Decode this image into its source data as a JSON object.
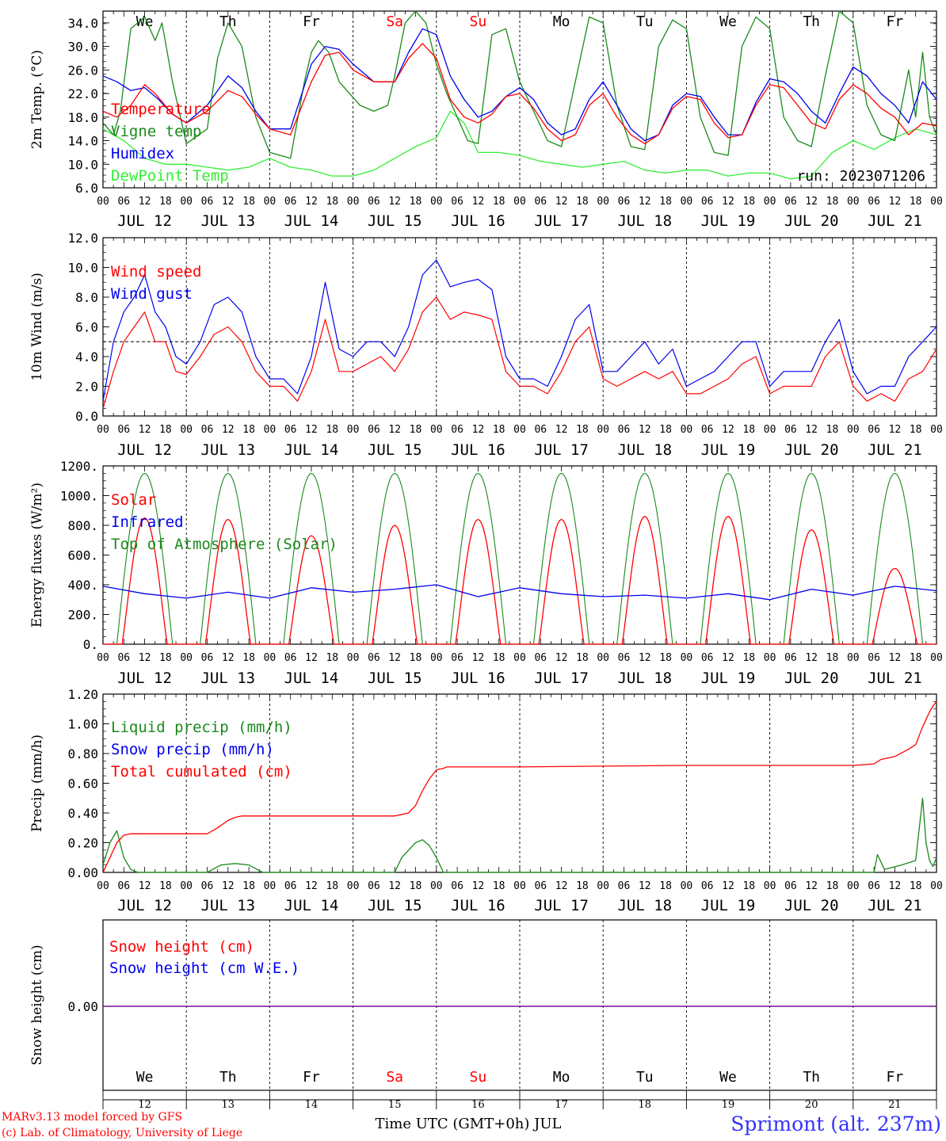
{
  "colors": {
    "red": "#ff0000",
    "green": "#1a8a1a",
    "light_green": "#33ee33",
    "blue": "#0000ee",
    "purple": "#7a0a9a",
    "black": "#000000",
    "weekend": "#ff0000",
    "location": "#3333ff"
  },
  "x_axis": {
    "hour_ticks": [
      "00",
      "06",
      "12",
      "18"
    ],
    "end_tick": "00",
    "dates": [
      "JUL 12",
      "JUL 13",
      "JUL 14",
      "JUL 15",
      "JUL 16",
      "JUL 17",
      "JUL 18",
      "JUL 19",
      "JUL 20",
      "JUL 21"
    ],
    "days": [
      "We",
      "Th",
      "Fr",
      "Sa",
      "Su",
      "Mo",
      "Tu",
      "We",
      "Th",
      "Fr"
    ],
    "weekend_flags": [
      false,
      false,
      false,
      true,
      true,
      false,
      false,
      false,
      false,
      false
    ],
    "day_numbers": [
      "12",
      "13",
      "14",
      "15",
      "16",
      "17",
      "18",
      "19",
      "20",
      "21"
    ]
  },
  "footer": {
    "xlabel": "Time UTC (GMT+0h) JUL",
    "model": "MARv3.13 model forced by GFS",
    "credit": "(c) Lab. of Climatology, University of Liege",
    "location": "Sprimont (alt. 237m)"
  },
  "chart_data": [
    {
      "id": "temp",
      "type": "line",
      "ylabel": "2m Temp. (°C)",
      "ylim": [
        6,
        36
      ],
      "yticks": [
        "6.0",
        "10.0",
        "14.0",
        "18.0",
        "22.0",
        "26.0",
        "30.0",
        "34.0"
      ],
      "annotation": "run: 2023071206",
      "series": [
        {
          "name": "Temperature",
          "color_key": "red",
          "hours": [
            0,
            4,
            8,
            12,
            15,
            20,
            24,
            30,
            36,
            40,
            44,
            48,
            54,
            60,
            64,
            68,
            72,
            78,
            84,
            88,
            92,
            96,
            100,
            104,
            108,
            112,
            116,
            120,
            124,
            128,
            132,
            136,
            140,
            144,
            148,
            152,
            156,
            160,
            164,
            168,
            172,
            176,
            180,
            184,
            188,
            192,
            196,
            200,
            204,
            208,
            212,
            216,
            220,
            224,
            228,
            232,
            236,
            240
          ],
          "values": [
            19,
            18,
            20,
            23.5,
            22,
            18.5,
            17,
            19,
            22.5,
            21.5,
            18.5,
            16,
            15,
            24,
            28.5,
            29,
            26,
            24,
            24,
            28,
            30.5,
            28,
            21,
            18,
            17,
            18.5,
            21.5,
            22,
            19.5,
            16,
            14,
            15,
            20,
            22,
            18,
            15,
            13.5,
            15,
            19.5,
            21.5,
            21,
            17,
            14.5,
            15,
            20,
            23.5,
            23,
            20,
            17,
            16,
            21,
            23.5,
            22,
            19.5,
            18,
            15,
            17,
            16.5
          ]
        },
        {
          "name": "Vigne temp",
          "color_key": "green",
          "hours": [
            0,
            3,
            5,
            8,
            12,
            15,
            17,
            20,
            24,
            30,
            33,
            36,
            40,
            44,
            48,
            54,
            58,
            60,
            62,
            65,
            68,
            71,
            74,
            78,
            82,
            84,
            87,
            90,
            93,
            96,
            99,
            102,
            105,
            108,
            112,
            116,
            120,
            124,
            128,
            132,
            136,
            140,
            144,
            148,
            152,
            156,
            160,
            164,
            168,
            172,
            176,
            180,
            184,
            188,
            192,
            196,
            200,
            204,
            208,
            212,
            216,
            220,
            224,
            228,
            232,
            234,
            236,
            238,
            240
          ],
          "values": [
            17,
            15,
            19,
            33,
            35,
            31,
            34,
            24,
            13.5,
            16,
            28,
            34,
            30,
            18,
            12,
            11,
            24,
            29,
            31,
            29,
            24,
            22,
            20,
            19,
            20,
            25,
            34,
            36,
            34,
            27,
            22,
            18,
            14,
            13.5,
            32,
            33,
            24,
            19,
            14,
            13,
            24,
            35,
            34,
            20,
            13,
            12.5,
            30,
            34.5,
            33,
            18,
            12,
            11.5,
            30,
            35,
            33,
            18,
            14,
            13,
            25,
            36,
            34,
            20,
            15,
            14,
            26,
            18,
            29,
            18,
            15
          ]
        },
        {
          "name": "Humidex",
          "color_key": "blue",
          "hours": [
            0,
            4,
            8,
            12,
            16,
            20,
            24,
            30,
            36,
            40,
            44,
            48,
            54,
            60,
            64,
            68,
            72,
            78,
            84,
            88,
            92,
            96,
            100,
            104,
            108,
            112,
            116,
            120,
            124,
            128,
            132,
            136,
            140,
            144,
            148,
            152,
            156,
            160,
            164,
            168,
            172,
            176,
            180,
            184,
            188,
            192,
            196,
            200,
            204,
            208,
            212,
            216,
            220,
            224,
            228,
            232,
            236,
            240
          ],
          "values": [
            25,
            24,
            22.5,
            23,
            21,
            18.5,
            17,
            20,
            25,
            23,
            19,
            16,
            16,
            27,
            30,
            29.5,
            27,
            24,
            24,
            29,
            33,
            32,
            25,
            21,
            18,
            19,
            21.5,
            23,
            21,
            17,
            15,
            16,
            21,
            24,
            20,
            16,
            14,
            15,
            20,
            22,
            21.5,
            18,
            15,
            15,
            20.5,
            24.5,
            24,
            22,
            19,
            17,
            22,
            26.5,
            25,
            22,
            20,
            17,
            24,
            21
          ]
        },
        {
          "name": "DewPoint Temp",
          "color_key": "light_green",
          "hours": [
            0,
            6,
            12,
            18,
            24,
            30,
            36,
            42,
            48,
            54,
            60,
            66,
            72,
            78,
            84,
            90,
            96,
            100,
            104,
            108,
            114,
            120,
            126,
            132,
            138,
            144,
            150,
            156,
            162,
            168,
            174,
            180,
            186,
            192,
            198,
            204,
            210,
            216,
            222,
            228,
            234,
            240
          ],
          "values": [
            16,
            14,
            11,
            10,
            10,
            9.5,
            9,
            9.5,
            11,
            9.5,
            9,
            8,
            8,
            9,
            11,
            13,
            14.5,
            19,
            17,
            12,
            12,
            11.5,
            10.5,
            10,
            9.5,
            10,
            10.5,
            9,
            8.5,
            9,
            9,
            8,
            8.5,
            8.5,
            7.5,
            8,
            12,
            14,
            12.5,
            14.5,
            16,
            15
          ]
        }
      ]
    },
    {
      "id": "wind",
      "type": "line",
      "ylabel": "10m Wind (m/s)",
      "ylim": [
        0,
        12
      ],
      "yticks": [
        "0.0",
        "2.0",
        "4.0",
        "6.0",
        "8.0",
        "10.0",
        "12.0"
      ],
      "reference_line": 5,
      "series": [
        {
          "name": "Wind speed",
          "color_key": "red",
          "hours": [
            0,
            3,
            6,
            9,
            12,
            15,
            18,
            21,
            24,
            28,
            32,
            36,
            40,
            44,
            48,
            52,
            56,
            60,
            64,
            68,
            72,
            76,
            80,
            84,
            88,
            92,
            96,
            100,
            104,
            108,
            112,
            116,
            120,
            124,
            128,
            132,
            136,
            140,
            144,
            148,
            152,
            156,
            160,
            164,
            168,
            172,
            176,
            180,
            184,
            188,
            192,
            196,
            200,
            204,
            208,
            212,
            216,
            220,
            224,
            228,
            232,
            236,
            240
          ],
          "values": [
            0.5,
            3,
            5,
            6,
            7,
            5,
            5,
            3,
            2.8,
            4,
            5.5,
            6,
            5,
            3,
            2,
            2,
            1,
            3,
            6.5,
            3,
            3,
            3.5,
            4,
            3,
            4.5,
            7,
            8,
            6.5,
            7,
            6.8,
            6.5,
            3,
            2,
            2,
            1.5,
            3,
            5,
            6,
            2.5,
            2,
            2.5,
            3,
            2.5,
            3,
            1.5,
            1.5,
            2,
            2.5,
            3.5,
            4,
            1.5,
            2,
            2,
            2,
            4,
            5,
            2,
            1,
            1.5,
            1,
            2.5,
            3,
            4.5
          ]
        },
        {
          "name": "Wind gust",
          "color_key": "blue",
          "hours": [
            0,
            3,
            6,
            9,
            12,
            15,
            18,
            21,
            24,
            28,
            32,
            36,
            40,
            44,
            48,
            52,
            56,
            60,
            64,
            68,
            72,
            76,
            80,
            84,
            88,
            92,
            96,
            100,
            104,
            108,
            112,
            116,
            120,
            124,
            128,
            132,
            136,
            140,
            144,
            148,
            152,
            156,
            160,
            164,
            168,
            172,
            176,
            180,
            184,
            188,
            192,
            196,
            200,
            204,
            208,
            212,
            216,
            220,
            224,
            228,
            232,
            236,
            240
          ],
          "values": [
            1,
            5,
            7,
            8,
            9.5,
            7,
            6,
            4,
            3.5,
            5,
            7.5,
            8,
            7,
            4,
            2.5,
            2.5,
            1.5,
            4,
            9,
            4.5,
            4,
            5,
            5,
            4,
            6,
            9.5,
            10.5,
            8.7,
            9,
            9.2,
            8.5,
            4,
            2.5,
            2.5,
            2,
            4,
            6.5,
            7.5,
            3,
            3,
            4,
            5,
            3.5,
            4.5,
            2,
            2.5,
            3,
            4,
            5,
            5,
            2,
            3,
            3,
            3,
            5,
            6.5,
            3,
            1.5,
            2,
            2,
            4,
            5,
            6
          ]
        }
      ]
    },
    {
      "id": "energy",
      "type": "line",
      "ylabel": "Energy fluxes (W/m²)",
      "ylim": [
        0,
        1200
      ],
      "yticks": [
        "0.",
        "200.",
        "400.",
        "600.",
        "800.",
        "1000.",
        "1200."
      ],
      "series": [
        {
          "name": "Solar",
          "color_key": "red",
          "day_peaks": [
            850,
            840,
            730,
            800,
            840,
            840,
            860,
            860,
            770,
            510
          ]
        },
        {
          "name": "Infrared",
          "color_key": "blue",
          "hours": [
            0,
            12,
            24,
            36,
            48,
            60,
            72,
            84,
            96,
            108,
            120,
            132,
            144,
            156,
            168,
            180,
            192,
            204,
            216,
            228,
            240
          ],
          "values": [
            390,
            340,
            310,
            350,
            310,
            380,
            350,
            370,
            400,
            320,
            380,
            340,
            320,
            330,
            310,
            340,
            300,
            370,
            330,
            390,
            360
          ]
        },
        {
          "name": "Top of Atmosphere (Solar)",
          "color_key": "green",
          "peak": 1150,
          "sunrise": 4,
          "sunset": 20
        }
      ]
    },
    {
      "id": "precip",
      "type": "line",
      "ylabel": "Precip (mm/h)",
      "ylim": [
        0,
        1.2
      ],
      "yticks": [
        "0.00",
        "0.20",
        "0.40",
        "0.60",
        "0.80",
        "1.00",
        "1.20"
      ],
      "series": [
        {
          "name": "Liquid precip (mm/h)",
          "color_key": "green",
          "hours": [
            0,
            2,
            4,
            6,
            8,
            10,
            30,
            34,
            38,
            42,
            46,
            84,
            86,
            88,
            90,
            92,
            94,
            96,
            98,
            200,
            222,
            223,
            225,
            230,
            234,
            236,
            237,
            238,
            239,
            240
          ],
          "values": [
            0.05,
            0.2,
            0.28,
            0.1,
            0.02,
            0,
            0,
            0.05,
            0.06,
            0.05,
            0,
            0,
            0.1,
            0.15,
            0.2,
            0.22,
            0.18,
            0.1,
            0,
            0,
            0,
            0.12,
            0.02,
            0.05,
            0.08,
            0.5,
            0.2,
            0.08,
            0.04,
            0.1
          ]
        },
        {
          "name": "Snow precip (mm/h)",
          "color_key": "blue",
          "hours": [],
          "values": []
        },
        {
          "name": "Total cumulated (cm)",
          "color_key": "red",
          "hours": [
            0,
            2,
            4,
            6,
            8,
            30,
            33,
            36,
            38,
            40,
            84,
            88,
            90,
            92,
            94,
            96,
            98,
            99,
            120,
            144,
            168,
            192,
            216,
            222,
            224,
            228,
            232,
            234,
            236,
            238,
            239,
            240
          ],
          "values": [
            0,
            0.1,
            0.2,
            0.25,
            0.26,
            0.26,
            0.3,
            0.35,
            0.37,
            0.38,
            0.38,
            0.4,
            0.45,
            0.55,
            0.63,
            0.69,
            0.7,
            0.71,
            0.71,
            0.715,
            0.72,
            0.72,
            0.72,
            0.73,
            0.76,
            0.78,
            0.83,
            0.86,
            0.98,
            1.08,
            1.12,
            1.15
          ]
        }
      ]
    },
    {
      "id": "snow",
      "type": "line",
      "ylabel": "Snow height (cm)",
      "yticks": [
        "0.00"
      ],
      "series": [
        {
          "name": "Snow height (cm)",
          "color_key": "red",
          "hours": [
            0,
            240
          ],
          "values": [
            0,
            0
          ]
        },
        {
          "name": "Snow height (cm W.E.)",
          "color_key": "blue",
          "hours": [
            0,
            240
          ],
          "values": [
            0,
            0
          ]
        }
      ]
    }
  ]
}
